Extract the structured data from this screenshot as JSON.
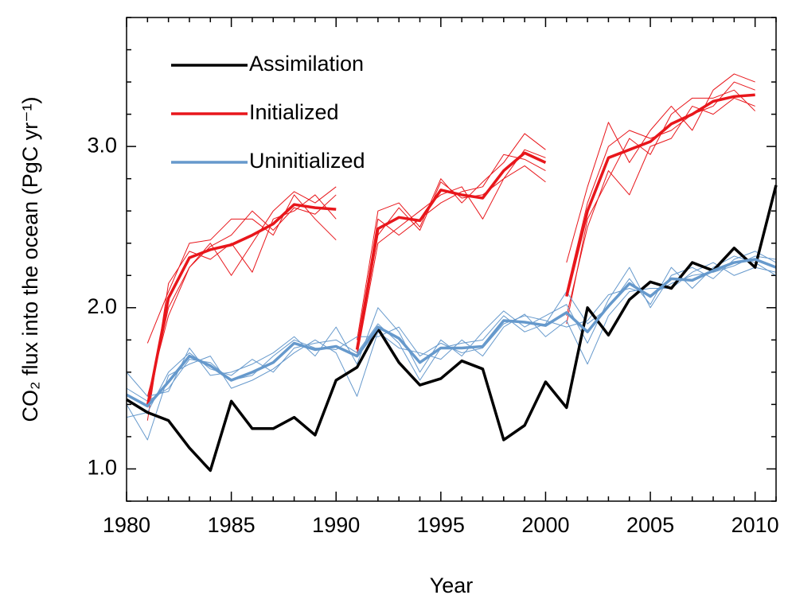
{
  "chart_data": {
    "type": "line",
    "x_label": "Year",
    "y_label": "CO₂ flux into the ocean (PgC yr⁻¹)",
    "x": [
      1980,
      1981,
      1982,
      1983,
      1984,
      1985,
      1986,
      1987,
      1988,
      1989,
      1990,
      1991,
      1992,
      1993,
      1994,
      1995,
      1996,
      1997,
      1998,
      1999,
      2000,
      2001,
      2002,
      2003,
      2004,
      2005,
      2006,
      2007,
      2008,
      2009,
      2010,
      2011
    ],
    "xlim": [
      1980,
      2011
    ],
    "xticks": [
      1980,
      1985,
      1990,
      1995,
      2000,
      2005,
      2010
    ],
    "xminor_ticks": [
      1981,
      1982,
      1983,
      1984,
      1986,
      1987,
      1988,
      1989,
      1991,
      1992,
      1993,
      1994,
      1996,
      1997,
      1998,
      1999,
      2001,
      2002,
      2003,
      2004,
      2006,
      2007,
      2008,
      2009,
      2011
    ],
    "ylim": [
      0.8,
      3.8
    ],
    "yticks": [
      {
        "value": 1,
        "label": "1.0"
      },
      {
        "value": 2,
        "label": "2.0"
      },
      {
        "value": 3,
        "label": "3.0"
      }
    ],
    "yminor_ticks": [
      0.8,
      1.2,
      1.4,
      1.6,
      1.8,
      2.2,
      2.4,
      2.6,
      2.8,
      3.2,
      3.4,
      3.6,
      3.8
    ],
    "legend": "upper left",
    "series": [
      {
        "name": "Assimilation",
        "color": "#000000",
        "values": [
          1.43,
          1.35,
          1.3,
          1.13,
          0.99,
          1.42,
          1.25,
          1.25,
          1.32,
          1.21,
          1.55,
          1.63,
          1.87,
          1.66,
          1.52,
          1.56,
          1.67,
          1.62,
          1.18,
          1.27,
          1.54,
          1.38,
          2.0,
          1.83,
          2.05,
          2.16,
          2.12,
          2.28,
          2.23,
          2.37,
          2.25,
          2.76
        ]
      },
      {
        "name": "Initialized",
        "color": "#e8161b",
        "x": [
          1981,
          1982,
          1983,
          1984,
          1985,
          1986,
          1987,
          1988,
          1989,
          1990,
          null,
          1991,
          1992,
          1993,
          1994,
          1995,
          1996,
          1997,
          1998,
          1999,
          2000,
          null,
          2001,
          2002,
          2003,
          2004,
          2005,
          2006,
          2007,
          2008,
          2009,
          2010
        ],
        "values": [
          1.39,
          2.06,
          2.31,
          2.36,
          2.39,
          2.45,
          2.52,
          2.64,
          2.62,
          2.61,
          null,
          1.74,
          2.49,
          2.56,
          2.54,
          2.73,
          2.7,
          2.68,
          2.85,
          2.96,
          2.9,
          null,
          2.07,
          2.6,
          2.93,
          2.98,
          3.03,
          3.14,
          3.2,
          3.28,
          3.31,
          3.32
        ],
        "members": [
          [
            1.78,
            2.1,
            2.4,
            2.42,
            2.55,
            2.55,
            2.45,
            2.7,
            2.55,
            2.42,
            null,
            1.8,
            2.6,
            2.65,
            2.5,
            2.8,
            2.65,
            2.78,
            2.9,
            3.08,
            2.98,
            null,
            2.28,
            2.75,
            3.15,
            2.9,
            3.1,
            3.25,
            3.1,
            3.35,
            3.45,
            3.4
          ],
          [
            1.4,
            2.0,
            2.25,
            2.4,
            2.2,
            2.4,
            2.6,
            2.72,
            2.65,
            2.75,
            null,
            1.7,
            2.4,
            2.5,
            2.6,
            2.7,
            2.75,
            2.55,
            2.8,
            2.88,
            2.78,
            null,
            1.95,
            2.5,
            2.85,
            2.7,
            3.0,
            3.05,
            3.25,
            3.2,
            3.3,
            3.25
          ],
          [
            1.3,
            2.15,
            2.35,
            2.3,
            2.4,
            2.22,
            2.55,
            2.6,
            2.7,
            2.55,
            null,
            1.75,
            2.55,
            2.45,
            2.55,
            2.65,
            2.72,
            2.75,
            2.95,
            2.92,
            2.85,
            null,
            1.9,
            2.55,
            2.8,
            3.05,
            2.95,
            3.2,
            3.3,
            3.3,
            3.35,
            3.22
          ],
          [
            1.45,
            1.95,
            2.25,
            2.38,
            2.45,
            2.6,
            2.48,
            2.62,
            2.58,
            2.7,
            null,
            1.72,
            2.45,
            2.62,
            2.48,
            2.78,
            2.68,
            2.7,
            2.8,
            2.98,
            2.93,
            null,
            2.1,
            2.65,
            3.0,
            3.1,
            3.05,
            3.1,
            3.2,
            3.25,
            3.4,
            3.35
          ]
        ]
      },
      {
        "name": "Uninitialized",
        "color": "#6699cc",
        "values": [
          1.46,
          1.39,
          1.54,
          1.7,
          1.64,
          1.55,
          1.6,
          1.66,
          1.78,
          1.74,
          1.76,
          1.7,
          1.88,
          1.81,
          1.66,
          1.75,
          1.75,
          1.76,
          1.92,
          1.91,
          1.89,
          1.97,
          1.85,
          2.01,
          2.15,
          2.07,
          2.18,
          2.17,
          2.23,
          2.28,
          2.3,
          2.25
        ],
        "members": [
          [
            1.6,
            1.45,
            1.48,
            1.75,
            1.58,
            1.6,
            1.65,
            1.72,
            1.82,
            1.7,
            1.88,
            1.65,
            2.0,
            1.85,
            1.6,
            1.8,
            1.7,
            1.85,
            1.98,
            1.88,
            1.95,
            2.02,
            1.78,
            2.05,
            2.25,
            2.0,
            2.2,
            2.25,
            2.18,
            2.3,
            2.35,
            2.28
          ],
          [
            1.4,
            1.18,
            1.58,
            1.65,
            1.7,
            1.5,
            1.55,
            1.62,
            1.72,
            1.8,
            1.72,
            1.45,
            1.85,
            1.75,
            1.72,
            1.68,
            1.8,
            1.7,
            1.88,
            1.96,
            1.82,
            1.92,
            1.65,
            1.95,
            2.1,
            2.12,
            2.12,
            2.22,
            2.28,
            2.2,
            2.25,
            2.22
          ],
          [
            1.32,
            1.35,
            1.6,
            1.72,
            1.62,
            1.58,
            1.68,
            1.6,
            1.75,
            1.78,
            1.8,
            1.72,
            1.9,
            1.78,
            1.55,
            1.75,
            1.78,
            1.8,
            1.95,
            1.85,
            1.9,
            2.1,
            1.9,
            2.0,
            2.18,
            2.02,
            2.25,
            2.12,
            2.25,
            2.32,
            2.28,
            2.2
          ],
          [
            1.5,
            1.42,
            1.5,
            1.68,
            1.66,
            1.55,
            1.58,
            1.7,
            1.8,
            1.75,
            1.74,
            1.82,
            1.82,
            1.88,
            1.7,
            1.78,
            1.72,
            1.75,
            1.9,
            1.95,
            1.92,
            1.88,
            1.92,
            2.08,
            2.12,
            2.08,
            2.15,
            2.2,
            2.22,
            2.26,
            2.32,
            2.3
          ]
        ]
      }
    ]
  }
}
